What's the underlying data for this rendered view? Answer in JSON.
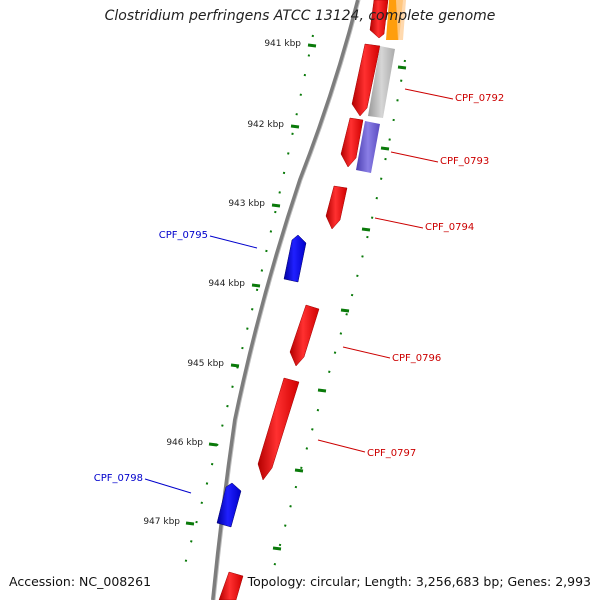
{
  "title": "Clostridium perfringens ATCC 13124, complete genome",
  "footer": {
    "accession_label": "Accession:",
    "accession": "NC_008261",
    "topology_label": "Topology:",
    "topology": "circular",
    "length_label": "Length:",
    "length": "3,256,683 bp",
    "genes_label": "Genes:",
    "genes": "2,993"
  },
  "colors": {
    "forward_gene": "#ff0000",
    "reverse_gene": "#0000ff",
    "backbone": "#808080",
    "tick": "#007700",
    "orange_feature": "#ff9900",
    "purple_feature": "#6a5acd",
    "grey_feature": "#b3b3b3"
  },
  "ticks": [
    "941 kbp",
    "942 kbp",
    "943 kbp",
    "944 kbp",
    "945 kbp",
    "946 kbp",
    "947 kbp"
  ],
  "genes": [
    {
      "label": "CPF_0792",
      "strand": "forward"
    },
    {
      "label": "CPF_0793",
      "strand": "forward"
    },
    {
      "label": "CPF_0794",
      "strand": "forward"
    },
    {
      "label": "CPF_0795",
      "strand": "reverse"
    },
    {
      "label": "CPF_0796",
      "strand": "forward"
    },
    {
      "label": "CPF_0797",
      "strand": "forward"
    },
    {
      "label": "CPF_0798",
      "strand": "reverse"
    }
  ]
}
